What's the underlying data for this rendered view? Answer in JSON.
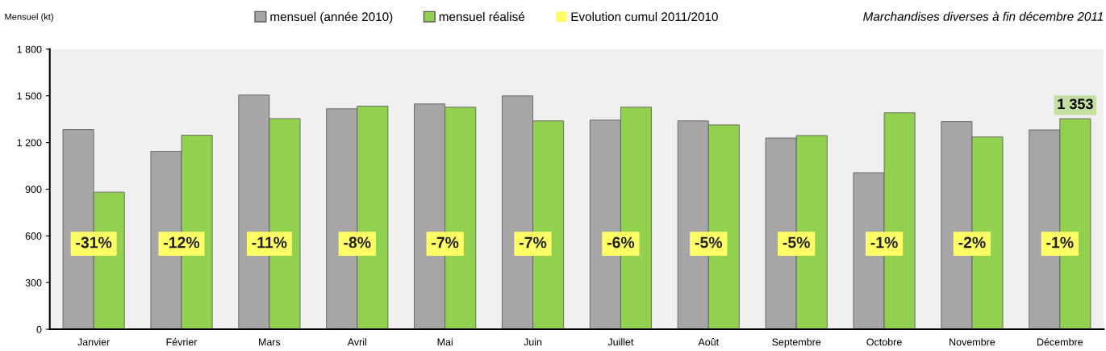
{
  "chart_data": {
    "type": "bar",
    "title": "Marchandises diverses à fin décembre 2011",
    "ylabel": "Mensuel (kt)",
    "categories": [
      "Janvier",
      "Février",
      "Mars",
      "Avril",
      "Mai",
      "Juin",
      "Juillet",
      "Août",
      "Septembre",
      "Octobre",
      "Novembre",
      "Décembre"
    ],
    "series": [
      {
        "name": "mensuel (année 2010)",
        "color": "#a6a6a6",
        "values": [
          1283,
          1143,
          1505,
          1417,
          1448,
          1500,
          1344,
          1339,
          1229,
          1006,
          1335,
          1281
        ]
      },
      {
        "name": "mensuel réalisé",
        "color": "#92d050",
        "values": [
          881,
          1247,
          1354,
          1434,
          1427,
          1339,
          1427,
          1313,
          1245,
          1391,
          1236,
          1353
        ],
        "value_labels": [
          null,
          null,
          null,
          null,
          null,
          null,
          null,
          null,
          null,
          null,
          null,
          "1 353"
        ]
      },
      {
        "name": "Evolution cumul 2011/2010",
        "color": "#ffff66",
        "type": "other",
        "values": [
          null,
          null,
          null,
          null,
          null,
          null,
          null,
          null,
          null,
          null,
          null,
          null
        ],
        "value_labels": [
          "-31%",
          "-12%",
          "-11%",
          "-8%",
          "-7%",
          "-7%",
          "-6%",
          "-5%",
          "-5%",
          "-1%",
          "-2%",
          "-1%"
        ]
      }
    ],
    "ylim": [
      0,
      1800
    ],
    "yticks": [
      0,
      300,
      600,
      900,
      {
        "value": 1200,
        "label": "1 200"
      },
      {
        "value": 1500,
        "label": "1 500"
      },
      {
        "value": 1800,
        "label": "1 800"
      }
    ],
    "legend": "top",
    "grid": false
  }
}
